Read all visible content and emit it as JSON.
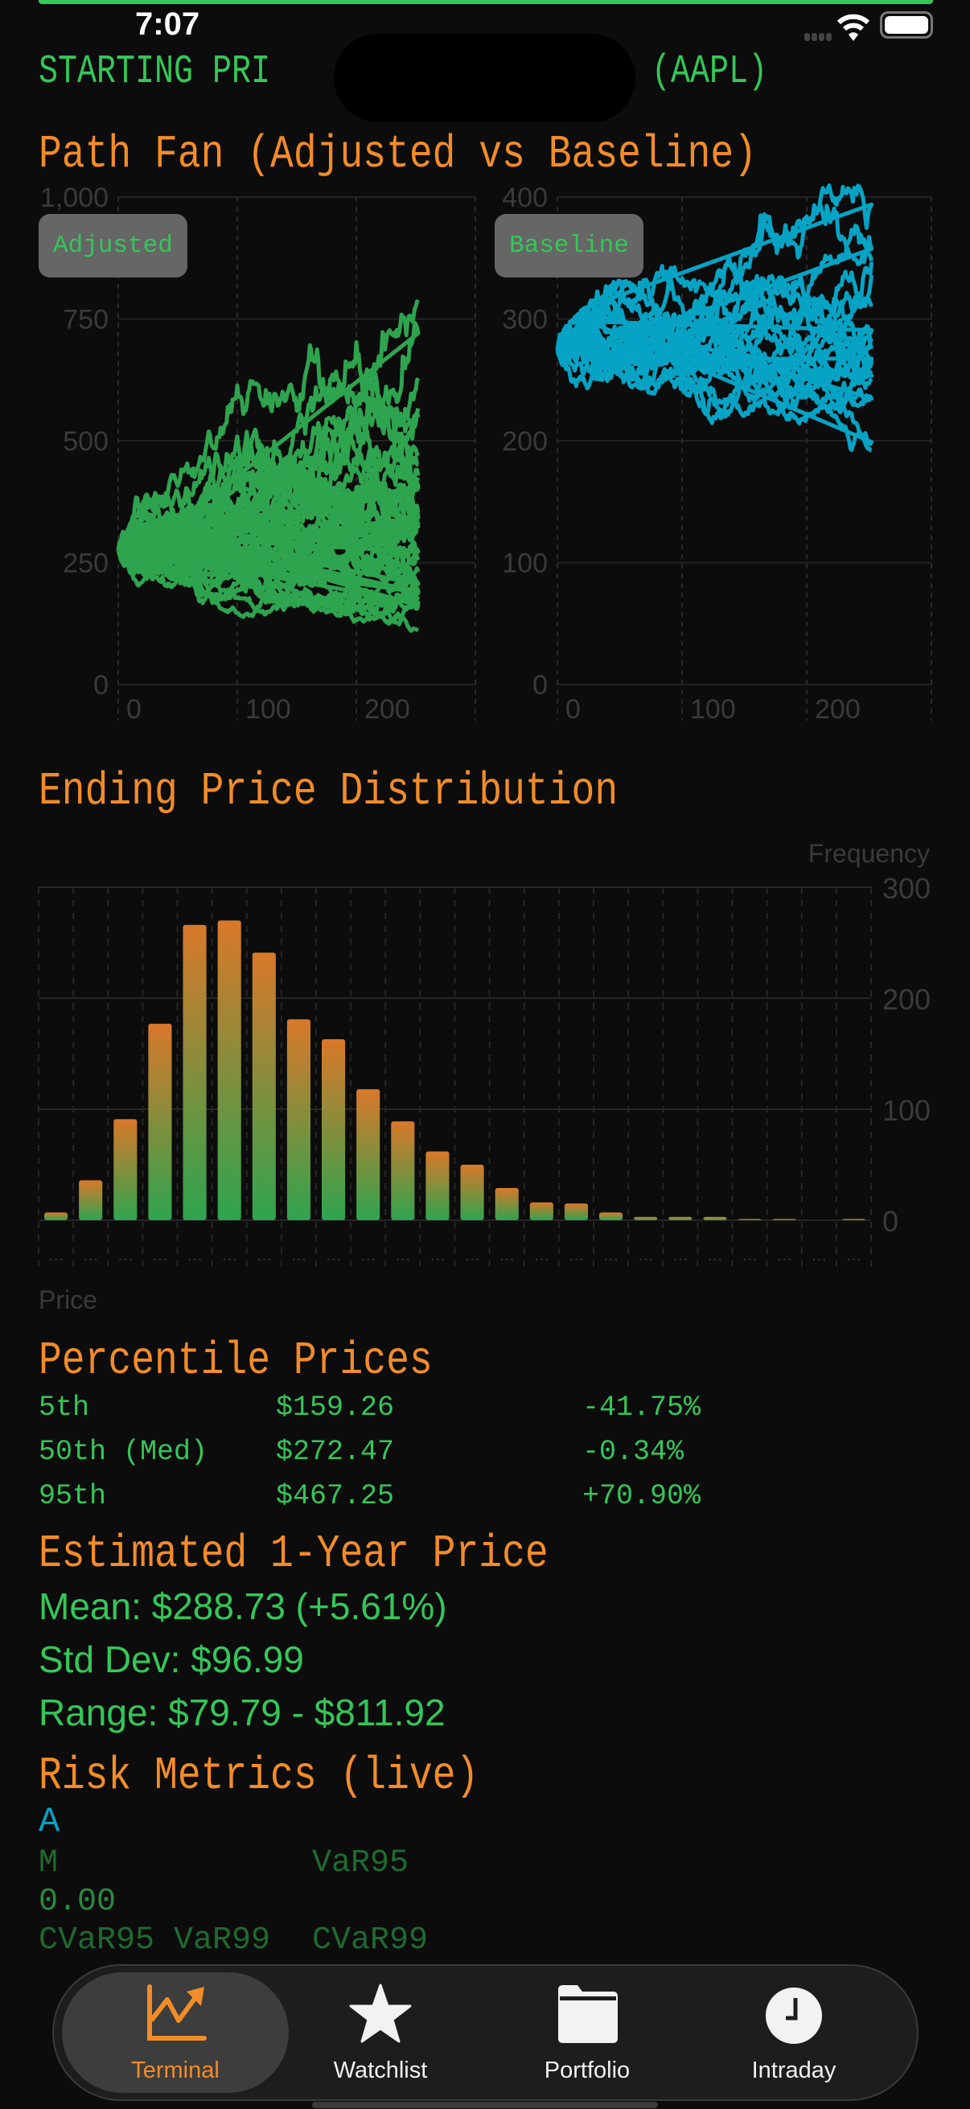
{
  "status_bar": {
    "time": "7:07"
  },
  "header": {
    "ticker_line_left": "STARTING PRI",
    "ticker_line_right": "(AAPL)"
  },
  "path_fan": {
    "title": "Path Fan (Adjusted vs Baseline)",
    "colors": {
      "adjusted": "#2ea44f",
      "baseline": "#06a3c4"
    }
  },
  "distribution": {
    "title": "Ending Price Distribution"
  },
  "chart_data": [
    {
      "type": "line",
      "series_label": "Adjusted",
      "xlim": [
        0,
        300
      ],
      "ylim": [
        0,
        1000
      ],
      "x_ticks": [
        "0",
        "100",
        "200"
      ],
      "y_ticks": [
        "0",
        "250",
        "500",
        "750",
        "1,000"
      ],
      "path_count_approx": 40,
      "steps": 252,
      "approx_start": 275,
      "approx_end_range": [
        160,
        820
      ],
      "grid": true
    },
    {
      "type": "line",
      "series_label": "Baseline",
      "xlim": [
        0,
        300
      ],
      "ylim": [
        0,
        400
      ],
      "x_ticks": [
        "0",
        "100",
        "200"
      ],
      "y_ticks": [
        "0",
        "100",
        "200",
        "300",
        "400"
      ],
      "path_count_approx": 20,
      "steps": 252,
      "approx_start": 275,
      "approx_end_range": [
        215,
        385
      ],
      "grid": true
    },
    {
      "type": "bar",
      "xlabel": "Price",
      "ylabel": "Frequency",
      "ylim": [
        0,
        300
      ],
      "y_ticks": [
        "0",
        "100",
        "200",
        "300"
      ],
      "categories": [
        "…",
        "…",
        "…",
        "…",
        "…",
        "…",
        "…",
        "…",
        "…",
        "…",
        "…",
        "…",
        "…",
        "…",
        "…",
        "…",
        "…",
        "…",
        "…",
        "…",
        "…",
        "…",
        "…",
        "…"
      ],
      "values": [
        7,
        36,
        91,
        177,
        266,
        270,
        241,
        181,
        163,
        118,
        89,
        62,
        50,
        29,
        16,
        15,
        7,
        3,
        3,
        3,
        1,
        1,
        0,
        1
      ],
      "gradient": {
        "top": "#d9782a",
        "bottom": "#2ea44f"
      },
      "grid": true
    }
  ],
  "percentiles": {
    "title": "Percentile Prices",
    "rows": [
      {
        "label": "5th",
        "price": "$159.26",
        "change": "-41.75%"
      },
      {
        "label": "50th (Med)",
        "price": "$272.47",
        "change": "-0.34%"
      },
      {
        "label": "95th",
        "price": "$467.25",
        "change": "+70.90%"
      }
    ]
  },
  "estimate": {
    "title": "Estimated 1-Year Price",
    "mean": "Mean: $288.73 (+5.61%)",
    "std": "Std Dev: $96.99",
    "range": "Range: $79.79 - $811.92"
  },
  "risk": {
    "title": "Risk Metrics (live)",
    "partial_a": "A",
    "partial_m": "M",
    "var95": "VaR95",
    "value_partial": "0.00",
    "row_labels_left": "CVaR95 VaR99",
    "row_labels_right": "CVaR99"
  },
  "tabs": [
    {
      "label": "Terminal",
      "icon": "chart-line-uptrend-icon",
      "selected": true
    },
    {
      "label": "Watchlist",
      "icon": "star-icon",
      "selected": false
    },
    {
      "label": "Portfolio",
      "icon": "folder-icon",
      "selected": false
    },
    {
      "label": "Intraday",
      "icon": "clock-icon",
      "selected": false
    }
  ],
  "colors": {
    "accent_orange": "#f28c28",
    "text_green": "#34c759",
    "background": "#0c0c0c"
  }
}
